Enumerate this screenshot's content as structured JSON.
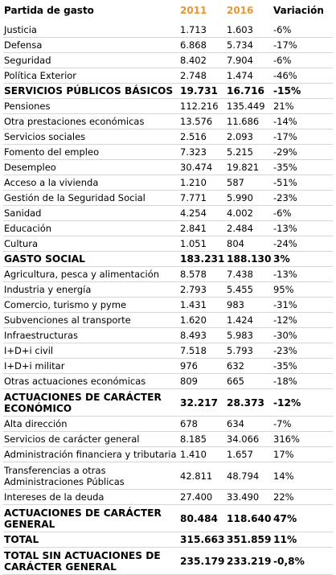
{
  "header": {
    "label": "Partida de gasto",
    "year1": "2011",
    "year2": "2016",
    "variation": "Variación"
  },
  "rows": [
    {
      "label": "Justicia",
      "v2011": "1.713",
      "v2016": "1.603",
      "var": "-6%",
      "bold": false
    },
    {
      "label": "Defensa",
      "v2011": "6.868",
      "v2016": "5.734",
      "var": "-17%",
      "bold": false
    },
    {
      "label": "Seguridad",
      "v2011": "8.402",
      "v2016": "7.904",
      "var": "-6%",
      "bold": false
    },
    {
      "label": "Política Exterior",
      "v2011": "2.748",
      "v2016": "1.474",
      "var": "-46%",
      "bold": false
    },
    {
      "label": "SERVICIOS PÚBLICOS BÁSICOS",
      "v2011": "19.731",
      "v2016": "16.716",
      "var": "-15%",
      "bold": true
    },
    {
      "label": "Pensiones",
      "v2011": "112.216",
      "v2016": "135.449",
      "var": "21%",
      "bold": false
    },
    {
      "label": "Otra prestaciones económicas",
      "v2011": "13.576",
      "v2016": "11.686",
      "var": "-14%",
      "bold": false
    },
    {
      "label": "Servicios sociales",
      "v2011": "2.516",
      "v2016": "2.093",
      "var": "-17%",
      "bold": false
    },
    {
      "label": "Fomento del empleo",
      "v2011": "7.323",
      "v2016": "5.215",
      "var": "-29%",
      "bold": false
    },
    {
      "label": "Desempleo",
      "v2011": "30.474",
      "v2016": "19.821",
      "var": "-35%",
      "bold": false
    },
    {
      "label": "Acceso a la vivienda",
      "v2011": "1.210",
      "v2016": "587",
      "var": "-51%",
      "bold": false
    },
    {
      "label": "Gestión de la Seguridad Social",
      "v2011": "7.771",
      "v2016": "5.990",
      "var": "-23%",
      "bold": false
    },
    {
      "label": "Sanidad",
      "v2011": "4.254",
      "v2016": "4.002",
      "var": "-6%",
      "bold": false
    },
    {
      "label": "Educación",
      "v2011": "2.841",
      "v2016": "2.484",
      "var": "-13%",
      "bold": false
    },
    {
      "label": "Cultura",
      "v2011": "1.051",
      "v2016": "804",
      "var": "-24%",
      "bold": false
    },
    {
      "label": "GASTO SOCIAL",
      "v2011": "183.231",
      "v2016": "188.130",
      "var": "3%",
      "bold": true
    },
    {
      "label": "Agricultura, pesca y alimentación",
      "v2011": "8.578",
      "v2016": "7.438",
      "var": "-13%",
      "bold": false
    },
    {
      "label": "Industria y energía",
      "v2011": "2.793",
      "v2016": "5.455",
      "var": "95%",
      "bold": false
    },
    {
      "label": "Comercio, turismo y pyme",
      "v2011": "1.431",
      "v2016": "983",
      "var": "-31%",
      "bold": false
    },
    {
      "label": "Subvenciones al transporte",
      "v2011": "1.620",
      "v2016": "1.424",
      "var": "-12%",
      "bold": false
    },
    {
      "label": "Infraestructuras",
      "v2011": "8.493",
      "v2016": "5.983",
      "var": "-30%",
      "bold": false
    },
    {
      "label": "I+D+i civil",
      "v2011": "7.518",
      "v2016": "5.793",
      "var": "-23%",
      "bold": false
    },
    {
      "label": "I+D+i militar",
      "v2011": "976",
      "v2016": "632",
      "var": "-35%",
      "bold": false
    },
    {
      "label": "Otras actuaciones económicas",
      "v2011": "809",
      "v2016": "665",
      "var": "-18%",
      "bold": false
    },
    {
      "label": "ACTUACIONES DE CARÁCTER ECONÓMICO",
      "v2011": "32.217",
      "v2016": "28.373",
      "var": "-12%",
      "bold": true,
      "double": true
    },
    {
      "label": "Alta dirección",
      "v2011": "678",
      "v2016": "634",
      "var": "-7%",
      "bold": false
    },
    {
      "label": "Servicios de carácter general",
      "v2011": "8.185",
      "v2016": "34.066",
      "var": "316%",
      "bold": false
    },
    {
      "label": "Administración financiera y tributaria",
      "v2011": "1.410",
      "v2016": "1.657",
      "var": "17%",
      "bold": false
    },
    {
      "label": "Transferencias a otras Administraciones Públicas",
      "v2011": "42.811",
      "v2016": "48.794",
      "var": "14%",
      "bold": false,
      "double": true
    },
    {
      "label": "Intereses de la deuda",
      "v2011": "27.400",
      "v2016": "33.490",
      "var": "22%",
      "bold": false
    },
    {
      "label": "ACTUACIONES DE CARÁCTER GENERAL",
      "v2011": "80.484",
      "v2016": "118.640",
      "var": "47%",
      "bold": true,
      "double": true
    },
    {
      "label": "TOTAL",
      "v2011": "315.663",
      "v2016": "351.859",
      "var": "11%",
      "bold": true
    },
    {
      "label": "TOTAL SIN ACTUACIONES DE CARÁCTER GENERAL",
      "v2011": "235.179",
      "v2016": "233.219",
      "var": "-0,8%",
      "bold": true,
      "double": true
    }
  ]
}
